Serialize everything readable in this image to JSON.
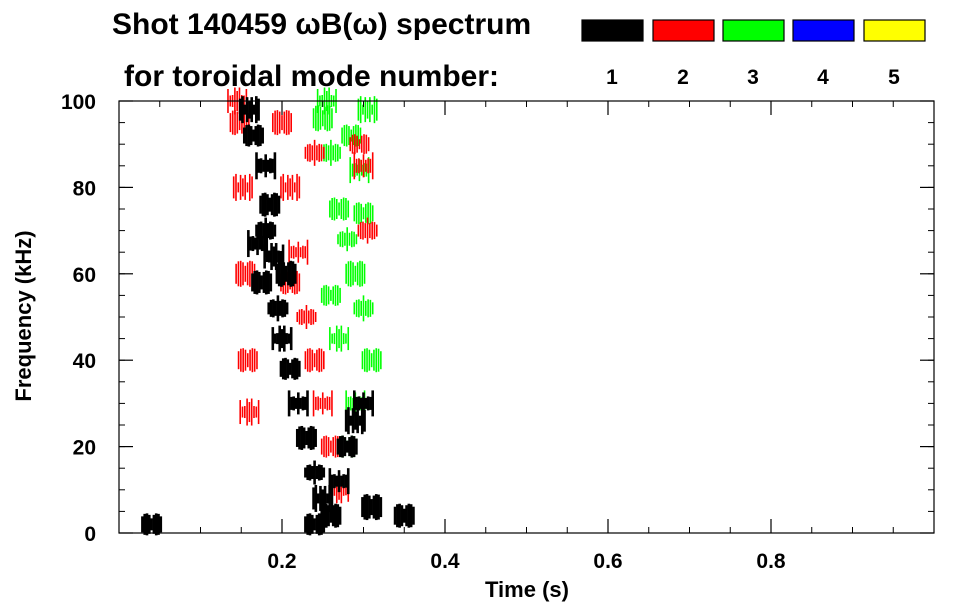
{
  "chart_data": {
    "type": "scatter",
    "title_line1": "Shot 140459 ωB(ω) spectrum",
    "title_line2": "for toroidal mode number:",
    "xlabel": "Time (s)",
    "ylabel": "Frequency (kHz)",
    "xlim": [
      0.0,
      1.0
    ],
    "ylim": [
      0,
      100
    ],
    "x_ticks": [
      0.2,
      0.4,
      0.6,
      0.8
    ],
    "x_tick_labels": [
      "0.2",
      "0.4",
      "0.6",
      "0.8"
    ],
    "y_ticks": [
      0,
      20,
      40,
      60,
      80,
      100
    ],
    "y_tick_labels": [
      "0",
      "20",
      "40",
      "60",
      "80",
      "100"
    ],
    "x_minor_step": 0.05,
    "y_minor_step": 5,
    "grid": false,
    "legend_position": "top-right",
    "series": [
      {
        "name": "1",
        "color": "#000000",
        "points": [
          [
            0.17,
            67
          ],
          [
            0.18,
            70
          ],
          [
            0.19,
            64
          ],
          [
            0.175,
            58
          ],
          [
            0.195,
            52
          ],
          [
            0.185,
            76
          ],
          [
            0.18,
            85
          ],
          [
            0.2,
            45
          ],
          [
            0.21,
            38
          ],
          [
            0.22,
            30
          ],
          [
            0.23,
            22
          ],
          [
            0.24,
            14
          ],
          [
            0.25,
            8
          ],
          [
            0.26,
            4
          ],
          [
            0.27,
            12
          ],
          [
            0.28,
            20
          ],
          [
            0.29,
            26
          ],
          [
            0.3,
            30
          ],
          [
            0.205,
            60
          ],
          [
            0.165,
            92
          ],
          [
            0.16,
            98
          ],
          [
            0.24,
            2
          ],
          [
            0.31,
            6
          ],
          [
            0.35,
            4
          ],
          [
            0.04,
            2
          ]
        ]
      },
      {
        "name": "2",
        "color": "#ff0000",
        "points": [
          [
            0.148,
            95
          ],
          [
            0.152,
            80
          ],
          [
            0.155,
            60
          ],
          [
            0.158,
            40
          ],
          [
            0.16,
            28
          ],
          [
            0.145,
            100
          ],
          [
            0.2,
            95
          ],
          [
            0.21,
            80
          ],
          [
            0.22,
            65
          ],
          [
            0.23,
            50
          ],
          [
            0.24,
            40
          ],
          [
            0.25,
            30
          ],
          [
            0.26,
            20
          ],
          [
            0.27,
            10
          ],
          [
            0.3,
            85
          ],
          [
            0.305,
            70
          ],
          [
            0.295,
            90
          ],
          [
            0.24,
            88
          ],
          [
            0.21,
            58
          ]
        ]
      },
      {
        "name": "3",
        "color": "#00ff00",
        "points": [
          [
            0.25,
            96
          ],
          [
            0.26,
            88
          ],
          [
            0.27,
            75
          ],
          [
            0.28,
            68
          ],
          [
            0.29,
            60
          ],
          [
            0.285,
            92
          ],
          [
            0.295,
            84
          ],
          [
            0.3,
            52
          ],
          [
            0.31,
            40
          ],
          [
            0.29,
            30
          ],
          [
            0.28,
            20
          ],
          [
            0.26,
            55
          ],
          [
            0.27,
            45
          ],
          [
            0.3,
            74
          ],
          [
            0.305,
            98
          ],
          [
            0.255,
            100
          ]
        ]
      },
      {
        "name": "4",
        "color": "#0000ff",
        "points": []
      },
      {
        "name": "5",
        "color": "#ffff00",
        "points": []
      }
    ]
  }
}
